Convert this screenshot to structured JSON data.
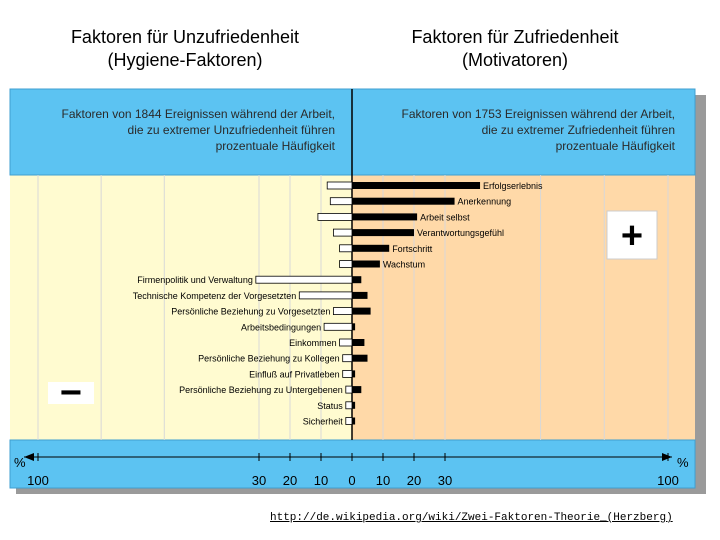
{
  "headings": {
    "left": [
      "Faktoren für Unzufriedenheit",
      "(Hygiene-Faktoren)"
    ],
    "right": [
      "Faktoren für Zufriedenheit",
      "(Motivatoren)"
    ]
  },
  "panels": {
    "left": [
      "Faktoren von 1844 Ereignissen während der Arbeit,",
      "die zu extremer Unzufriedenheit führen",
      "prozentuale Häufigkeit"
    ],
    "right": [
      "Faktoren von 1753 Ereignissen während der Arbeit,",
      "die zu extremer Zufriedenheit führen",
      "prozentuale Häufigkeit"
    ]
  },
  "signs": {
    "plus": "+",
    "minus": "−"
  },
  "url": "http://de.wikipedia.org/wiki/Zwei-Faktoren-Theorie_(Herzberg)",
  "chart_data": {
    "type": "bar",
    "orientation": "horizontal-diverging",
    "x_unit": "%",
    "x_range": [
      -100,
      100
    ],
    "x_ticks": [
      {
        "v": -100,
        "label": "100"
      },
      {
        "v": -30,
        "label": "30"
      },
      {
        "v": -20,
        "label": "20"
      },
      {
        "v": -10,
        "label": "10"
      },
      {
        "v": 0,
        "label": "0"
      },
      {
        "v": 10,
        "label": "10"
      },
      {
        "v": 20,
        "label": "20"
      },
      {
        "v": 30,
        "label": "30"
      },
      {
        "v": 100,
        "label": "100"
      }
    ],
    "colors": {
      "dissatisfaction": "#fffbd0",
      "satisfaction": "#ffd9a8",
      "header": "#5cc3f2",
      "bar": "#000000",
      "bar_neg": "#ffffff"
    },
    "categories": [
      {
        "label": "Erfolgserlebnis",
        "side": "right",
        "dissatisfaction": 8,
        "satisfaction": 41
      },
      {
        "label": "Anerkennung",
        "side": "right",
        "dissatisfaction": 7,
        "satisfaction": 33
      },
      {
        "label": "Arbeit selbst",
        "side": "right",
        "dissatisfaction": 11,
        "satisfaction": 21
      },
      {
        "label": "Verantwortungsgefühl",
        "side": "right",
        "dissatisfaction": 6,
        "satisfaction": 20
      },
      {
        "label": "Fortschritt",
        "side": "right",
        "dissatisfaction": 4,
        "satisfaction": 12
      },
      {
        "label": "Wachstum",
        "side": "right",
        "dissatisfaction": 4,
        "satisfaction": 9
      },
      {
        "label": "Firmenpolitik und Verwaltung",
        "side": "left",
        "dissatisfaction": 31,
        "satisfaction": 3
      },
      {
        "label": "Technische Kompetenz der Vorgesetzten",
        "side": "left",
        "dissatisfaction": 17,
        "satisfaction": 5
      },
      {
        "label": "Persönliche Beziehung zu Vorgesetzten",
        "side": "left",
        "dissatisfaction": 6,
        "satisfaction": 6
      },
      {
        "label": "Arbeitsbedingungen",
        "side": "left",
        "dissatisfaction": 9,
        "satisfaction": 1
      },
      {
        "label": "Einkommen",
        "side": "left",
        "dissatisfaction": 4,
        "satisfaction": 4
      },
      {
        "label": "Persönliche Beziehung zu Kollegen",
        "side": "left",
        "dissatisfaction": 3,
        "satisfaction": 5
      },
      {
        "label": "Einfluß auf Privatleben",
        "side": "left",
        "dissatisfaction": 3,
        "satisfaction": 1
      },
      {
        "label": "Persönliche Beziehung zu Untergebenen",
        "side": "left",
        "dissatisfaction": 2,
        "satisfaction": 3
      },
      {
        "label": "Status",
        "side": "left",
        "dissatisfaction": 2,
        "satisfaction": 1
      },
      {
        "label": "Sicherheit",
        "side": "left",
        "dissatisfaction": 2,
        "satisfaction": 1
      }
    ]
  }
}
